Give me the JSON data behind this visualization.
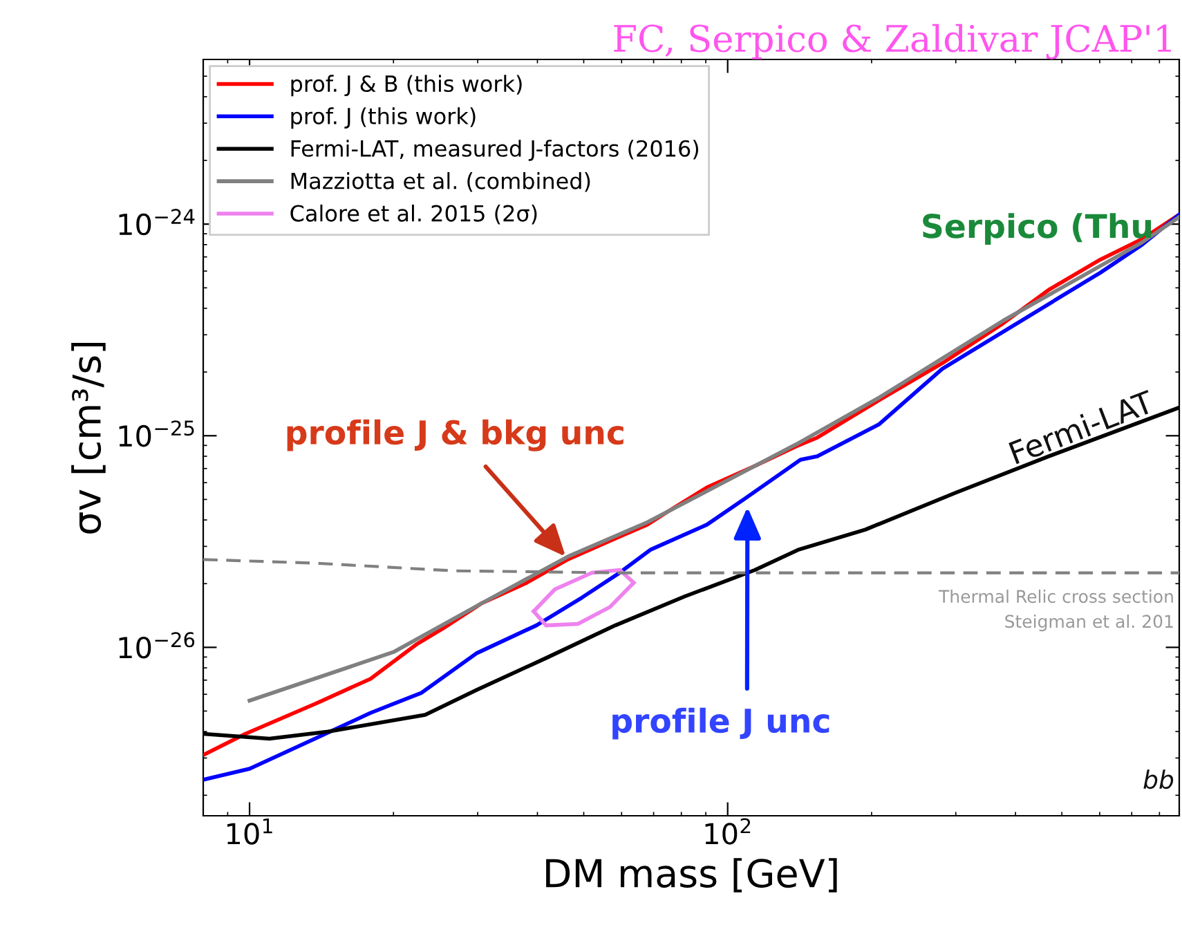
{
  "chart_data": {
    "type": "line",
    "title": "FC, Serpico & Zaldivar JCAP'1",
    "xlabel": "DM mass [GeV]",
    "ylabel": "σv [cm³/s]",
    "log": "xy",
    "xlim": [
      8,
      880
    ],
    "ylim": [
      1.6e-27,
      6e-24
    ],
    "xticks": [
      {
        "value": 10,
        "label": "10$^{1}$"
      },
      {
        "value": 100,
        "label": "10$^{2}$"
      }
    ],
    "yticks": [
      {
        "value": 1e-26,
        "label": "10$^{−26}$"
      },
      {
        "value": 1e-25,
        "label": "10$^{−25}$"
      },
      {
        "value": 1e-24,
        "label": "10$^{−24}$"
      }
    ],
    "grid": false,
    "legend": "top left",
    "line_style": "solid",
    "marker": "none",
    "series": [
      {
        "name": "prof. J & B (this work)",
        "color": "#ff0000",
        "x": [
          8,
          9.8,
          13.7,
          17.9,
          22.3,
          25.4,
          30.5,
          38,
          46.4,
          58.2,
          67.9,
          77.6,
          90.5,
          114,
          139,
          154,
          207,
          281,
          377,
          470,
          602,
          736,
          880
        ],
        "values": [
          3.1e-27,
          3.9e-27,
          5.4e-27,
          7.1e-27,
          1.03e-26,
          1.23e-26,
          1.61e-26,
          2.02e-26,
          2.61e-26,
          3.27e-26,
          3.8e-26,
          4.6e-26,
          5.7e-26,
          7.2e-26,
          8.9e-26,
          9.8e-26,
          1.47e-25,
          2.2e-25,
          3.4e-25,
          4.9e-25,
          6.8e-25,
          8.5e-25,
          1.11e-24
        ]
      },
      {
        "name": "prof. J (this work)",
        "color": "#0000ff",
        "x": [
          8,
          10,
          13.7,
          17.9,
          22.9,
          29.9,
          39.8,
          49.6,
          59.4,
          69.1,
          90.5,
          108,
          142,
          154,
          207,
          281,
          377,
          470,
          602,
          736,
          880
        ],
        "values": [
          2.37e-27,
          2.67e-27,
          3.7e-27,
          4.9e-27,
          6.1e-27,
          9.4e-27,
          1.27e-26,
          1.72e-26,
          2.25e-26,
          2.9e-26,
          3.8e-26,
          5e-26,
          7.7e-26,
          8e-26,
          1.13e-25,
          2.07e-25,
          3.1e-25,
          4.2e-25,
          5.9e-25,
          8e-25,
          1.11e-24
        ]
      },
      {
        "name": "Fermi-LAT, measured J-factors (2016)",
        "color": "#000000",
        "x": [
          8,
          11,
          14.6,
          23.3,
          29.9,
          41.7,
          58.2,
          81.3,
          114,
          141,
          194,
          301,
          470,
          880
        ],
        "values": [
          3.9e-27,
          3.7e-27,
          4e-27,
          4.8e-27,
          6.3e-27,
          8.9e-27,
          1.27e-26,
          1.74e-26,
          2.32e-26,
          2.9e-26,
          3.6e-26,
          5.4e-26,
          8e-26,
          1.36e-25
        ]
      },
      {
        "name": "Mazziotta et al. (combined)",
        "color": "#808080",
        "x": [
          10,
          20,
          30.5,
          46.4,
          67.9,
          139,
          207,
          377,
          736,
          880
        ],
        "values": [
          5.6e-27,
          9.5e-27,
          1.61e-26,
          2.69e-26,
          3.9e-26,
          9.1e-26,
          1.51e-25,
          3.5e-25,
          8.2e-25,
          1.08e-24
        ]
      },
      {
        "name": "Calore et al. 2015 (2σ)",
        "color": "#ee82ee",
        "x": [
          39.3,
          41.7,
          48.6,
          56.7,
          63.6
        ],
        "values": [
          1.48e-26,
          1.27e-26,
          1.29e-26,
          1.55e-26,
          2.02e-26
        ]
      },
      {
        "color": "#ee82ee",
        "x": [
          39.3,
          43.5,
          52,
          59.5,
          63.6
        ],
        "values": [
          1.48e-26,
          1.88e-26,
          2.25e-26,
          2.32e-26,
          2.02e-26
        ]
      },
      {
        "color": "#808080",
        "line_style": "dashed",
        "x": [
          8,
          13.7,
          26.7,
          59.4,
          880
        ],
        "values": [
          2.6e-26,
          2.5e-26,
          2.3e-26,
          2.25e-26,
          2.25e-26
        ]
      }
    ],
    "annotations": [
      {
        "text": "profile J & bkg unc",
        "x": 46.4,
        "y": 2.6e-26
      },
      {
        "text": "profile J unc",
        "x": 110,
        "y": 4.8e-26
      },
      "Fermi-LAT",
      "Serpico (Thu",
      "Thermal Relic cross section",
      "Steigman et al. 201",
      "bb"
    ]
  }
}
